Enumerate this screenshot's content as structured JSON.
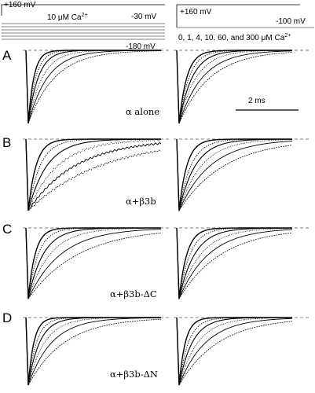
{
  "protocols": {
    "left": {
      "v_top": "+160 mV",
      "concentration": "10 μM Ca",
      "conc_superscript": "2+",
      "v_mid": "-30 mV",
      "v_bottom": "-180 mV"
    },
    "right": {
      "v_top": "+160 mV",
      "v_hold": "-100 mV",
      "concentrations_text": "0, 1, 4, 10, 60, and 300 μM Ca",
      "conc_superscript": "2+"
    }
  },
  "scale_bar": {
    "label": "2 ms"
  },
  "panels": [
    {
      "letter": "A",
      "label": "α alone"
    },
    {
      "letter": "B",
      "label": "α+β3b"
    },
    {
      "letter": "C",
      "label": "α+β3b-ΔC"
    },
    {
      "letter": "D",
      "label": "α+β3b-ΔN"
    }
  ],
  "traces": {
    "left_tau_ms": [
      [
        0.18,
        0.24,
        0.32,
        0.45,
        0.62,
        0.85
      ],
      [
        0.25,
        0.38,
        0.6,
        0.95,
        1.5,
        2.3
      ],
      [
        0.22,
        0.32,
        0.48,
        0.7,
        1.05,
        1.6
      ],
      [
        0.18,
        0.26,
        0.36,
        0.52,
        0.75,
        1.15
      ]
    ],
    "right_tau_ms": [
      [
        0.25,
        0.32,
        0.42,
        0.55,
        0.75,
        1.0
      ],
      [
        0.25,
        0.38,
        0.52,
        0.72,
        1.0,
        1.45
      ],
      [
        0.25,
        0.35,
        0.5,
        0.7,
        0.95,
        1.35
      ],
      [
        0.2,
        0.3,
        0.42,
        0.6,
        0.85,
        1.25
      ]
    ]
  }
}
